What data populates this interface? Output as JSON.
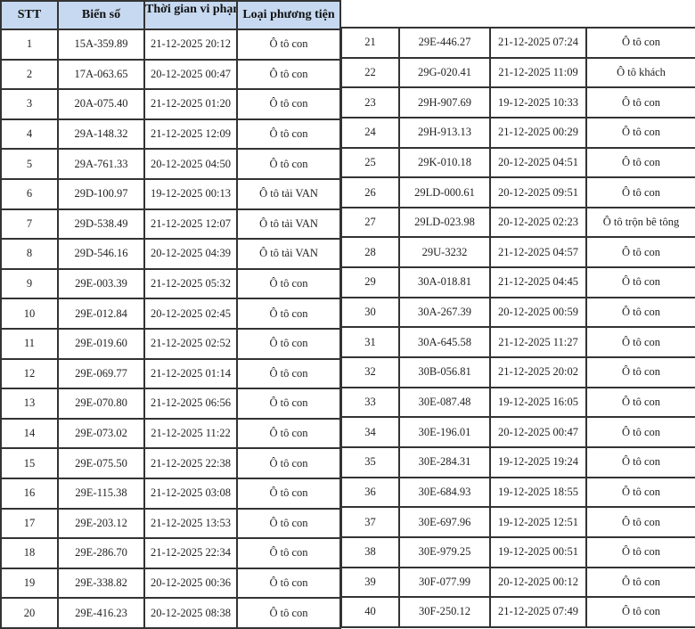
{
  "headers": {
    "stt": "STT",
    "plate": "Biển số",
    "time": "Thời gian vi phạm",
    "type": "Loại phương tiện"
  },
  "colors": {
    "header_bg": "#c6d9f0",
    "border": "#333333"
  },
  "rows": [
    [
      "1",
      "15A-359.89",
      "21-12-2025 20:12",
      "Ô tô con"
    ],
    [
      "2",
      "17A-063.65",
      "20-12-2025 00:47",
      "Ô tô con"
    ],
    [
      "3",
      "20A-075.40",
      "21-12-2025 01:20",
      "Ô tô con"
    ],
    [
      "4",
      "29A-148.32",
      "21-12-2025 12:09",
      "Ô tô con"
    ],
    [
      "5",
      "29A-761.33",
      "20-12-2025 04:50",
      "Ô tô con"
    ],
    [
      "6",
      "29D-100.97",
      "19-12-2025 00:13",
      "Ô tô tải VAN"
    ],
    [
      "7",
      "29D-538.49",
      "21-12-2025 12:07",
      "Ô tô tải VAN"
    ],
    [
      "8",
      "29D-546.16",
      "20-12-2025 04:39",
      "Ô tô tải VAN"
    ],
    [
      "9",
      "29E-003.39",
      "21-12-2025 05:32",
      "Ô tô con"
    ],
    [
      "10",
      "29E-012.84",
      "20-12-2025 02:45",
      "Ô tô con"
    ],
    [
      "11",
      "29E-019.60",
      "21-12-2025 02:52",
      "Ô tô con"
    ],
    [
      "12",
      "29E-069.77",
      "21-12-2025 01:14",
      "Ô tô con"
    ],
    [
      "13",
      "29E-070.80",
      "21-12-2025 06:56",
      "Ô tô con"
    ],
    [
      "14",
      "29E-073.02",
      "21-12-2025 11:22",
      "Ô tô con"
    ],
    [
      "15",
      "29E-075.50",
      "21-12-2025 22:38",
      "Ô tô con"
    ],
    [
      "16",
      "29E-115.38",
      "21-12-2025 03:08",
      "Ô tô con"
    ],
    [
      "17",
      "29E-203.12",
      "21-12-2025 13:53",
      "Ô tô con"
    ],
    [
      "18",
      "29E-286.70",
      "21-12-2025 22:34",
      "Ô tô con"
    ],
    [
      "19",
      "29E-338.82",
      "20-12-2025 00:36",
      "Ô tô con"
    ],
    [
      "20",
      "29E-416.23",
      "20-12-2025 08:38",
      "Ô tô con"
    ],
    [
      "21",
      "29E-446.27",
      "21-12-2025 07:24",
      "Ô tô con"
    ],
    [
      "22",
      "29G-020.41",
      "21-12-2025 11:09",
      "Ô tô khách"
    ],
    [
      "23",
      "29H-907.69",
      "19-12-2025 10:33",
      "Ô tô con"
    ],
    [
      "24",
      "29H-913.13",
      "21-12-2025 00:29",
      "Ô tô con"
    ],
    [
      "25",
      "29K-010.18",
      "20-12-2025 04:51",
      "Ô tô con"
    ],
    [
      "26",
      "29LD-000.61",
      "20-12-2025 09:51",
      "Ô tô con"
    ],
    [
      "27",
      "29LD-023.98",
      "20-12-2025 02:23",
      "Ô tô trộn bê tông"
    ],
    [
      "28",
      "29U-3232",
      "21-12-2025 04:57",
      "Ô tô con"
    ],
    [
      "29",
      "30A-018.81",
      "21-12-2025 04:45",
      "Ô tô con"
    ],
    [
      "30",
      "30A-267.39",
      "20-12-2025 00:59",
      "Ô tô con"
    ],
    [
      "31",
      "30A-645.58",
      "21-12-2025 11:27",
      "Ô tô con"
    ],
    [
      "32",
      "30B-056.81",
      "21-12-2025 20:02",
      "Ô tô con"
    ],
    [
      "33",
      "30E-087.48",
      "19-12-2025 16:05",
      "Ô tô con"
    ],
    [
      "34",
      "30E-196.01",
      "20-12-2025 00:47",
      "Ô tô con"
    ],
    [
      "35",
      "30E-284.31",
      "19-12-2025 19:24",
      "Ô tô con"
    ],
    [
      "36",
      "30E-684.93",
      "19-12-2025 18:55",
      "Ô tô con"
    ],
    [
      "37",
      "30E-697.96",
      "19-12-2025 12:51",
      "Ô tô con"
    ],
    [
      "38",
      "30E-979.25",
      "19-12-2025 00:51",
      "Ô tô con"
    ],
    [
      "39",
      "30F-077.99",
      "20-12-2025 00:12",
      "Ô tô con"
    ],
    [
      "40",
      "30F-250.12",
      "21-12-2025 07:49",
      "Ô tô con"
    ]
  ]
}
